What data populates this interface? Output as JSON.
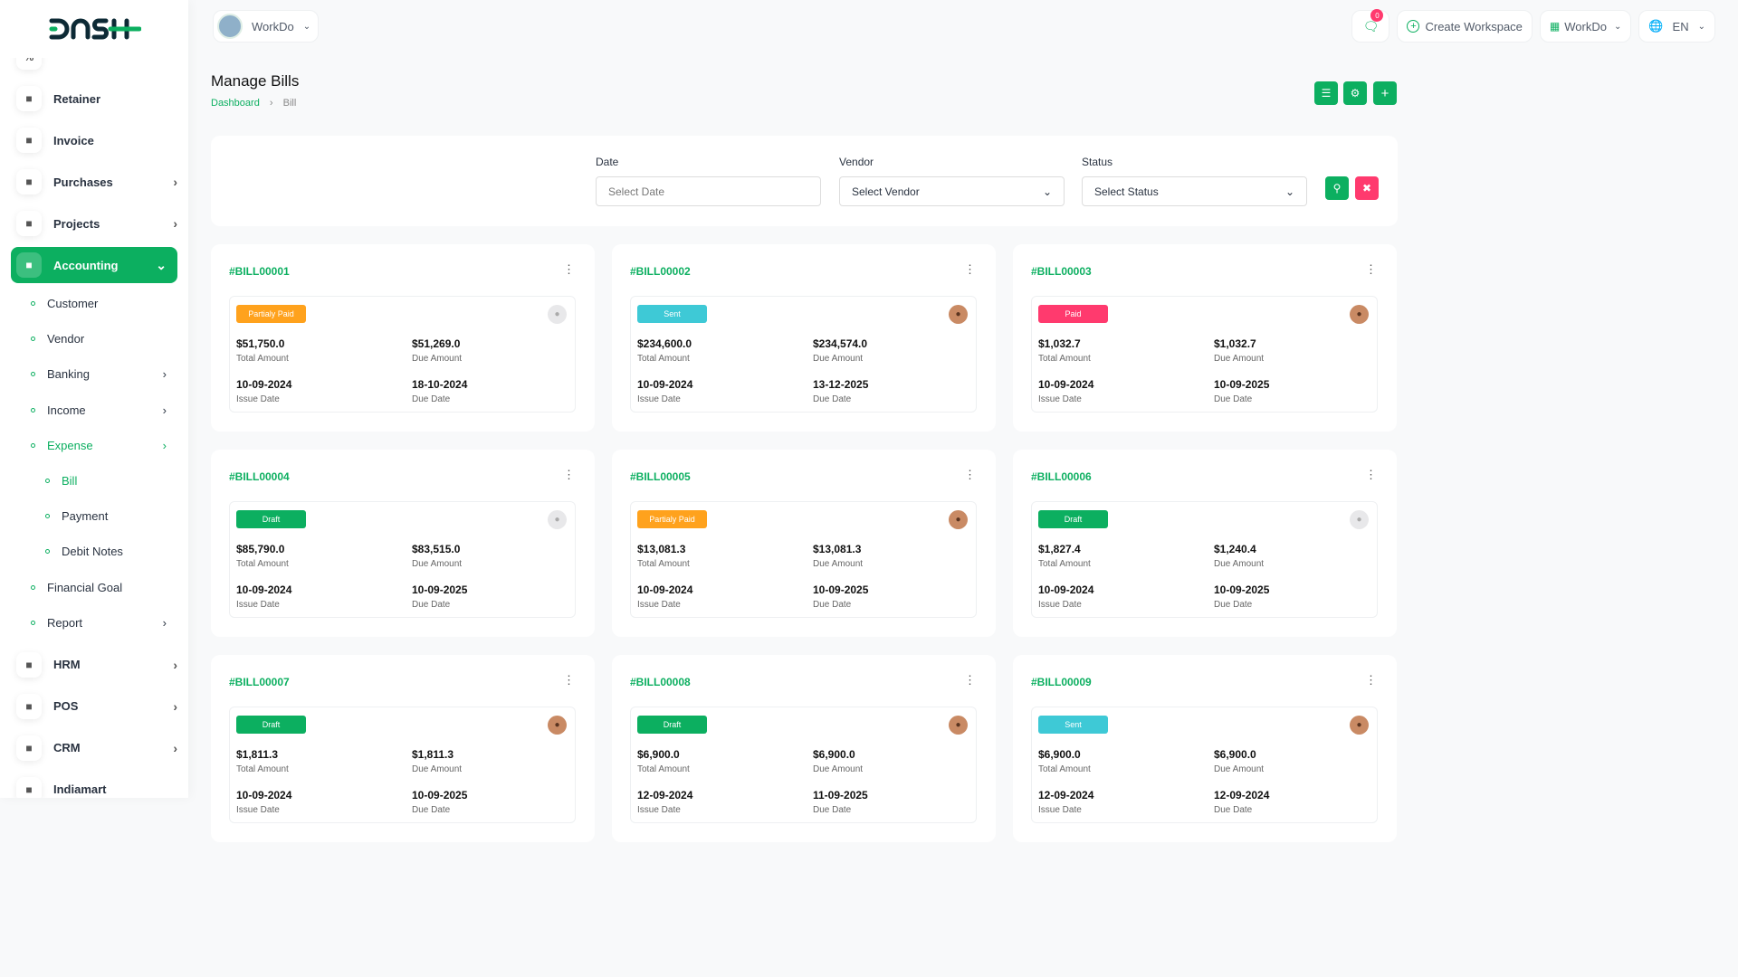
{
  "brand": {
    "logo_text": "DASH"
  },
  "header": {
    "workspace": "WorkDo",
    "notification_count": "0",
    "create_workspace": "Create Workspace",
    "workspace_menu": "WorkDo",
    "language": "EN"
  },
  "sidebar": {
    "items": [
      {
        "label": "Retainer",
        "icon": "retainer-icon"
      },
      {
        "label": "Invoice",
        "icon": "invoice-icon"
      },
      {
        "label": "Purchases",
        "icon": "cart-icon",
        "chevron": true
      },
      {
        "label": "Projects",
        "icon": "check-square-icon",
        "chevron": true
      },
      {
        "label": "Accounting",
        "icon": "grid-icon",
        "chevron": true,
        "active": true
      }
    ],
    "accounting": [
      {
        "label": "Customer"
      },
      {
        "label": "Vendor"
      },
      {
        "label": "Banking",
        "chevron": true
      },
      {
        "label": "Income",
        "chevron": true
      },
      {
        "label": "Expense",
        "chevron": true,
        "active": true
      }
    ],
    "expense": [
      {
        "label": "Bill",
        "active": true
      },
      {
        "label": "Payment"
      },
      {
        "label": "Debit Notes"
      }
    ],
    "more_sub": [
      {
        "label": "Financial Goal"
      },
      {
        "label": "Report",
        "chevron": true
      }
    ],
    "bottom": [
      {
        "label": "HRM",
        "chevron": true
      },
      {
        "label": "POS",
        "chevron": true
      },
      {
        "label": "CRM",
        "chevron": true
      },
      {
        "label": "Indiamart"
      }
    ]
  },
  "page": {
    "title": "Manage Bills",
    "breadcrumb": [
      "Dashboard",
      "Bill"
    ]
  },
  "filter": {
    "date_label": "Date",
    "date_placeholder": "Select Date",
    "vendor_label": "Vendor",
    "vendor_value": "Select Vendor",
    "status_label": "Status",
    "status_value": "Select Status"
  },
  "labels": {
    "total": "Total Amount",
    "due": "Due Amount",
    "issue": "Issue Date",
    "due_date": "Due Date"
  },
  "colors": {
    "accent": "#0caf60",
    "Partialy Paid": "#ffa21d",
    "Sent": "#3ec9d6",
    "Paid": "#ff3a6e",
    "Draft": "#0caf60"
  },
  "bills": [
    {
      "id": "#BILL00001",
      "status": "Partialy Paid",
      "total": "$51,750.0",
      "due": "$51,269.0",
      "issue_date": "10-09-2024",
      "due_date": "18-10-2024",
      "avatar": "default"
    },
    {
      "id": "#BILL00002",
      "status": "Sent",
      "total": "$234,600.0",
      "due": "$234,574.0",
      "issue_date": "10-09-2024",
      "due_date": "13-12-2025",
      "avatar": "photo"
    },
    {
      "id": "#BILL00003",
      "status": "Paid",
      "total": "$1,032.7",
      "due": "$1,032.7",
      "issue_date": "10-09-2024",
      "due_date": "10-09-2025",
      "avatar": "photo"
    },
    {
      "id": "#BILL00004",
      "status": "Draft",
      "total": "$85,790.0",
      "due": "$83,515.0",
      "issue_date": "10-09-2024",
      "due_date": "10-09-2025",
      "avatar": "default"
    },
    {
      "id": "#BILL00005",
      "status": "Partialy Paid",
      "total": "$13,081.3",
      "due": "$13,081.3",
      "issue_date": "10-09-2024",
      "due_date": "10-09-2025",
      "avatar": "photo"
    },
    {
      "id": "#BILL00006",
      "status": "Draft",
      "total": "$1,827.4",
      "due": "$1,240.4",
      "issue_date": "10-09-2024",
      "due_date": "10-09-2025",
      "avatar": "default"
    },
    {
      "id": "#BILL00007",
      "status": "Draft",
      "total": "$1,811.3",
      "due": "$1,811.3",
      "issue_date": "10-09-2024",
      "due_date": "10-09-2025",
      "avatar": "photo"
    },
    {
      "id": "#BILL00008",
      "status": "Draft",
      "total": "$6,900.0",
      "due": "$6,900.0",
      "issue_date": "12-09-2024",
      "due_date": "11-09-2025",
      "avatar": "photo"
    },
    {
      "id": "#BILL00009",
      "status": "Sent",
      "total": "$6,900.0",
      "due": "$6,900.0",
      "issue_date": "12-09-2024",
      "due_date": "12-09-2024",
      "avatar": "photo"
    }
  ]
}
